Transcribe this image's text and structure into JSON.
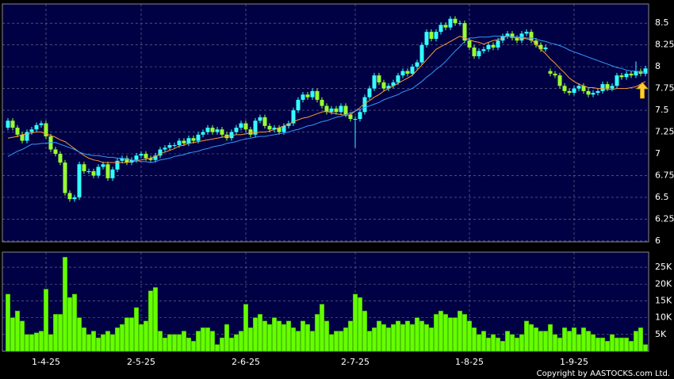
{
  "chart_data": [
    {
      "type": "candlestick",
      "x": [
        null,
        null,
        null,
        null,
        null,
        null,
        null,
        null,
        "1-4-25",
        null,
        null,
        null,
        null,
        null,
        null,
        null,
        null,
        null,
        null,
        null,
        null,
        null,
        null,
        null,
        null,
        null,
        null,
        null,
        "2-5-25",
        null,
        null,
        null,
        null,
        null,
        null,
        null,
        null,
        null,
        null,
        null,
        null,
        null,
        null,
        null,
        null,
        null,
        null,
        null,
        null,
        null,
        "2-6-25",
        null,
        null,
        null,
        null,
        null,
        null,
        null,
        null,
        null,
        null,
        null,
        null,
        null,
        null,
        null,
        null,
        null,
        null,
        null,
        null,
        null,
        null,
        "2-7-25",
        null,
        null,
        null,
        null,
        null,
        null,
        null,
        null,
        null,
        null,
        null,
        null,
        null,
        null,
        null,
        null,
        null,
        null,
        null,
        null,
        null,
        null,
        null,
        "1-8-25",
        null,
        null,
        null,
        null,
        null,
        null,
        null,
        null,
        null,
        null,
        null,
        null,
        null,
        null,
        null,
        null,
        null,
        null,
        null,
        null,
        null,
        "1-9-25",
        null,
        null,
        null,
        null,
        null,
        null,
        null,
        null,
        null,
        null,
        null,
        null,
        null,
        null,
        null
      ],
      "open": [
        7.3,
        7.38,
        7.3,
        7.22,
        7.15,
        7.25,
        7.28,
        7.33,
        7.35,
        7.2,
        7.05,
        7.0,
        6.9,
        6.55,
        6.48,
        6.5,
        6.88,
        6.8,
        6.8,
        6.75,
        6.85,
        6.88,
        6.72,
        6.82,
        6.92,
        6.95,
        6.9,
        6.93,
        6.98,
        7.0,
        6.95,
        6.93,
        6.98,
        7.05,
        7.07,
        7.1,
        7.1,
        7.15,
        7.12,
        7.18,
        7.15,
        7.22,
        7.25,
        7.3,
        7.25,
        7.28,
        7.22,
        7.18,
        7.25,
        7.3,
        7.35,
        7.28,
        7.22,
        7.38,
        7.42,
        7.32,
        7.28,
        7.3,
        7.25,
        7.32,
        7.35,
        7.5,
        7.62,
        7.68,
        7.65,
        7.72,
        7.62,
        7.55,
        7.48,
        7.52,
        7.48,
        7.55,
        7.45,
        7.4,
        7.4,
        7.48,
        7.65,
        7.75,
        7.9,
        7.82,
        7.75,
        7.78,
        7.82,
        7.9,
        7.95,
        7.92,
        8.0,
        8.05,
        8.25,
        8.4,
        8.32,
        8.4,
        8.48,
        8.45,
        8.55,
        8.5,
        8.5,
        8.3,
        8.22,
        8.12,
        8.18,
        8.2,
        8.25,
        8.22,
        8.3,
        8.35,
        8.38,
        8.33,
        8.3,
        8.38,
        8.4,
        8.3,
        8.25,
        8.2,
        7.95,
        7.92,
        7.9,
        7.78,
        7.72,
        7.7,
        7.75,
        7.78,
        7.72,
        7.68,
        7.7,
        7.72,
        7.8,
        7.75,
        7.78,
        7.9,
        7.88,
        7.92,
        7.9,
        7.95,
        7.92
      ],
      "high": [
        7.41,
        7.41,
        7.33,
        7.25,
        7.28,
        7.31,
        7.36,
        7.38,
        7.38,
        7.23,
        7.08,
        7.03,
        6.93,
        6.58,
        6.53,
        6.91,
        6.91,
        6.83,
        6.83,
        6.88,
        6.91,
        6.91,
        6.85,
        6.95,
        6.98,
        6.98,
        6.96,
        7.01,
        7.03,
        7.03,
        6.98,
        7.01,
        7.08,
        7.1,
        7.13,
        7.13,
        7.18,
        7.18,
        7.21,
        7.21,
        7.25,
        7.28,
        7.33,
        7.33,
        7.31,
        7.31,
        7.25,
        7.28,
        7.33,
        7.38,
        7.38,
        7.31,
        7.41,
        7.45,
        7.45,
        7.35,
        7.33,
        7.33,
        7.35,
        7.38,
        7.53,
        7.65,
        7.71,
        7.71,
        7.75,
        7.75,
        7.65,
        7.58,
        7.55,
        7.55,
        7.58,
        7.58,
        7.48,
        7.43,
        7.51,
        7.68,
        7.78,
        7.93,
        7.93,
        7.85,
        7.81,
        7.85,
        7.93,
        7.98,
        7.98,
        8.03,
        8.08,
        8.28,
        8.43,
        8.43,
        8.43,
        8.51,
        8.51,
        8.58,
        8.58,
        8.53,
        8.53,
        8.33,
        8.25,
        8.21,
        8.23,
        8.28,
        8.28,
        8.33,
        8.38,
        8.41,
        8.41,
        8.36,
        8.41,
        8.43,
        8.43,
        8.33,
        8.28,
        8.25,
        7.98,
        7.95,
        7.93,
        7.81,
        7.75,
        7.78,
        7.81,
        7.81,
        7.75,
        7.73,
        7.75,
        7.83,
        7.83,
        7.81,
        7.93,
        7.93,
        7.95,
        7.95,
        8.06,
        7.98,
        8.01
      ],
      "low": [
        7.27,
        7.27,
        7.19,
        7.12,
        7.12,
        7.22,
        7.25,
        7.3,
        7.17,
        7.02,
        6.97,
        6.87,
        6.52,
        6.45,
        6.45,
        6.47,
        6.77,
        6.77,
        6.72,
        6.72,
        6.82,
        6.69,
        6.69,
        6.79,
        6.89,
        6.87,
        6.87,
        6.9,
        6.95,
        6.92,
        6.9,
        6.9,
        6.95,
        7.02,
        7.04,
        7.07,
        7.07,
        7.09,
        7.09,
        7.12,
        7.12,
        7.19,
        7.22,
        7.22,
        7.22,
        7.19,
        7.15,
        7.15,
        7.22,
        7.27,
        7.25,
        7.19,
        7.19,
        7.35,
        7.29,
        7.25,
        7.25,
        7.22,
        7.22,
        7.29,
        7.32,
        7.47,
        7.59,
        7.62,
        7.62,
        7.59,
        7.52,
        7.45,
        7.45,
        7.45,
        7.45,
        7.42,
        7.37,
        7.07,
        7.37,
        7.45,
        7.62,
        7.72,
        7.79,
        7.72,
        7.72,
        7.75,
        7.79,
        7.87,
        7.89,
        7.89,
        7.97,
        8.02,
        8.22,
        8.29,
        8.29,
        8.37,
        8.42,
        8.42,
        8.47,
        8.47,
        8.27,
        8.19,
        8.09,
        8.09,
        8.15,
        8.17,
        8.19,
        8.19,
        8.27,
        8.32,
        8.3,
        8.27,
        8.27,
        8.35,
        8.27,
        8.22,
        8.17,
        8.17,
        7.89,
        7.87,
        7.75,
        7.69,
        7.67,
        7.67,
        7.72,
        7.69,
        7.65,
        7.65,
        7.67,
        7.69,
        7.72,
        7.72,
        7.75,
        7.85,
        7.85,
        7.87,
        7.87,
        7.89,
        7.89
      ],
      "close": [
        7.38,
        7.3,
        7.22,
        7.15,
        7.25,
        7.28,
        7.33,
        7.35,
        7.2,
        7.05,
        7.0,
        6.9,
        6.55,
        6.48,
        6.5,
        6.88,
        6.8,
        6.8,
        6.75,
        6.85,
        6.88,
        6.72,
        6.82,
        6.92,
        6.95,
        6.9,
        6.93,
        6.98,
        7.0,
        6.95,
        6.93,
        6.98,
        7.05,
        7.07,
        7.1,
        7.1,
        7.15,
        7.12,
        7.18,
        7.15,
        7.22,
        7.25,
        7.3,
        7.25,
        7.28,
        7.22,
        7.18,
        7.25,
        7.3,
        7.35,
        7.28,
        7.22,
        7.38,
        7.42,
        7.32,
        7.28,
        7.3,
        7.25,
        7.32,
        7.35,
        7.5,
        7.62,
        7.68,
        7.65,
        7.72,
        7.62,
        7.55,
        7.48,
        7.52,
        7.48,
        7.55,
        7.45,
        7.4,
        7.4,
        7.48,
        7.65,
        7.75,
        7.9,
        7.82,
        7.75,
        7.78,
        7.82,
        7.9,
        7.95,
        7.92,
        8.0,
        8.05,
        8.25,
        8.4,
        8.32,
        8.4,
        8.48,
        8.45,
        8.55,
        8.5,
        8.5,
        8.3,
        8.22,
        8.12,
        8.18,
        8.2,
        8.25,
        8.22,
        8.3,
        8.35,
        8.38,
        8.33,
        8.3,
        8.38,
        8.4,
        8.3,
        8.25,
        8.2,
        8.22,
        7.92,
        7.9,
        7.78,
        7.72,
        7.7,
        7.75,
        7.78,
        7.72,
        7.68,
        7.7,
        7.72,
        7.8,
        7.75,
        7.78,
        7.9,
        7.88,
        7.92,
        7.9,
        7.95,
        7.92,
        7.98
      ],
      "up_color": "#33ffff",
      "down_color": "#99ff33",
      "series": [
        {
          "color": "#ff9933",
          "values": [
            7.18,
            7.19,
            7.2,
            7.22,
            7.23,
            7.24,
            7.25,
            7.25,
            7.23,
            7.21,
            7.19,
            7.16,
            7.14,
            7.1,
            7.06,
            7.02,
            6.98,
            6.95,
            6.93,
            6.92,
            6.9,
            6.9,
            6.9,
            6.9,
            6.9,
            6.9,
            6.91,
            6.92,
            6.93,
            6.94,
            6.95,
            6.97,
            7.0,
            7.02,
            7.04,
            7.06,
            7.09,
            7.1,
            7.12,
            7.13,
            7.14,
            7.15,
            7.16,
            7.17,
            7.18,
            7.19,
            7.2,
            7.21,
            7.22,
            7.22,
            7.23,
            7.24,
            7.24,
            7.25,
            7.25,
            7.26,
            7.28,
            7.3,
            7.32,
            7.34,
            7.37,
            7.39,
            7.41,
            7.42,
            7.44,
            7.46,
            7.48,
            7.49,
            7.47,
            7.46,
            7.45,
            7.44,
            7.45,
            7.49,
            7.53,
            7.58,
            7.61,
            7.65,
            7.68,
            7.72,
            7.75,
            7.78,
            7.81,
            7.84,
            7.87,
            7.9,
            7.96,
            8.02,
            8.08,
            8.14,
            8.2,
            8.23,
            8.26,
            8.29,
            8.32,
            8.35,
            8.33,
            8.31,
            8.29,
            8.28,
            8.26,
            8.28,
            8.3,
            8.31,
            8.33,
            8.35,
            8.34,
            8.33,
            8.33,
            8.32,
            8.31,
            8.26,
            8.2,
            8.15,
            8.09,
            8.04,
            7.98,
            7.93,
            7.87,
            7.83,
            7.8,
            7.78,
            7.76,
            7.76,
            7.75,
            7.75,
            7.74,
            7.74,
            7.75,
            7.75,
            7.75,
            7.76,
            7.77,
            7.8,
            7.83
          ]
        },
        {
          "color": "#3399ff",
          "values": [
            6.97,
            7.0,
            7.03,
            7.05,
            7.08,
            7.11,
            7.11,
            7.12,
            7.12,
            7.13,
            7.13,
            7.11,
            7.09,
            7.07,
            7.05,
            7.02,
            7.0,
            6.99,
            6.98,
            6.98,
            6.97,
            6.96,
            6.96,
            6.95,
            6.95,
            6.94,
            6.93,
            6.92,
            6.91,
            6.91,
            6.9,
            6.91,
            6.93,
            6.94,
            6.95,
            6.97,
            6.98,
            6.99,
            7.01,
            7.02,
            7.03,
            7.05,
            7.06,
            7.08,
            7.09,
            7.1,
            7.12,
            7.13,
            7.14,
            7.16,
            7.17,
            7.18,
            7.19,
            7.2,
            7.2,
            7.21,
            7.22,
            7.23,
            7.24,
            7.25,
            7.27,
            7.28,
            7.3,
            7.32,
            7.33,
            7.35,
            7.37,
            7.38,
            7.4,
            7.42,
            7.43,
            7.45,
            7.47,
            7.49,
            7.51,
            7.53,
            7.55,
            7.57,
            7.59,
            7.62,
            7.64,
            7.66,
            7.68,
            7.71,
            7.73,
            7.75,
            7.79,
            7.83,
            7.88,
            7.92,
            7.97,
            8.01,
            8.06,
            8.12,
            8.18,
            8.23,
            8.29,
            8.33,
            8.33,
            8.34,
            8.34,
            8.34,
            8.35,
            8.35,
            8.35,
            8.35,
            8.34,
            8.34,
            8.34,
            8.33,
            8.33,
            8.32,
            8.3,
            8.29,
            8.27,
            8.26,
            8.24,
            8.22,
            8.19,
            8.17,
            8.15,
            8.13,
            8.11,
            8.09,
            8.07,
            8.05,
            8.03,
            8.01,
            7.99,
            7.98,
            7.96,
            7.95,
            7.95,
            7.94,
            7.93
          ]
        }
      ],
      "ylim": [
        5.99,
        8.72
      ],
      "yticks": [
        6,
        6.25,
        6.5,
        6.75,
        7,
        7.25,
        7.5,
        7.75,
        8,
        8.25,
        8.5
      ],
      "grid": true
    },
    {
      "type": "bar",
      "values": [
        17000,
        10000,
        12000,
        9000,
        5000,
        5000,
        5500,
        6000,
        18500,
        5000,
        11000,
        11000,
        28000,
        16000,
        17000,
        10000,
        7000,
        5000,
        6000,
        4000,
        5000,
        6000,
        5000,
        7000,
        8000,
        10000,
        10000,
        13000,
        8000,
        9000,
        18000,
        19000,
        6000,
        4000,
        5000,
        5000,
        5000,
        6000,
        4000,
        3000,
        6000,
        7000,
        7000,
        6000,
        2000,
        4000,
        8000,
        4000,
        5000,
        6000,
        14000,
        7000,
        10000,
        11000,
        9000,
        8000,
        10000,
        9000,
        8000,
        9000,
        7000,
        6000,
        9000,
        8000,
        6000,
        11000,
        14000,
        9000,
        5000,
        6000,
        6000,
        7000,
        9000,
        17000,
        16000,
        12000,
        6000,
        7000,
        9000,
        8000,
        7000,
        8000,
        9000,
        8000,
        9000,
        8000,
        10000,
        9000,
        8000,
        7000,
        11000,
        12000,
        11000,
        10000,
        10000,
        12000,
        11000,
        9000,
        7000,
        5000,
        6000,
        4000,
        5000,
        4000,
        3000,
        6000,
        5000,
        4000,
        5000,
        9000,
        8000,
        7000,
        6000,
        6000,
        8000,
        5000,
        4000,
        7000,
        6000,
        7000,
        5000,
        7000,
        6000,
        5000,
        4000,
        4000,
        3000,
        5000,
        4000,
        4000,
        4000,
        3000,
        6000,
        7000,
        2000
      ],
      "color": "#66ff00",
      "ylim": [
        0,
        29500
      ],
      "yticks": [
        {
          "value": 5000,
          "label": "5K"
        },
        {
          "value": 10000,
          "label": "10K"
        },
        {
          "value": 15000,
          "label": "15K"
        },
        {
          "value": 20000,
          "label": "20K"
        },
        {
          "value": 25000,
          "label": "25K"
        }
      ],
      "grid": true
    }
  ],
  "footer": "Copyright by AASTOCKS.com Ltd."
}
